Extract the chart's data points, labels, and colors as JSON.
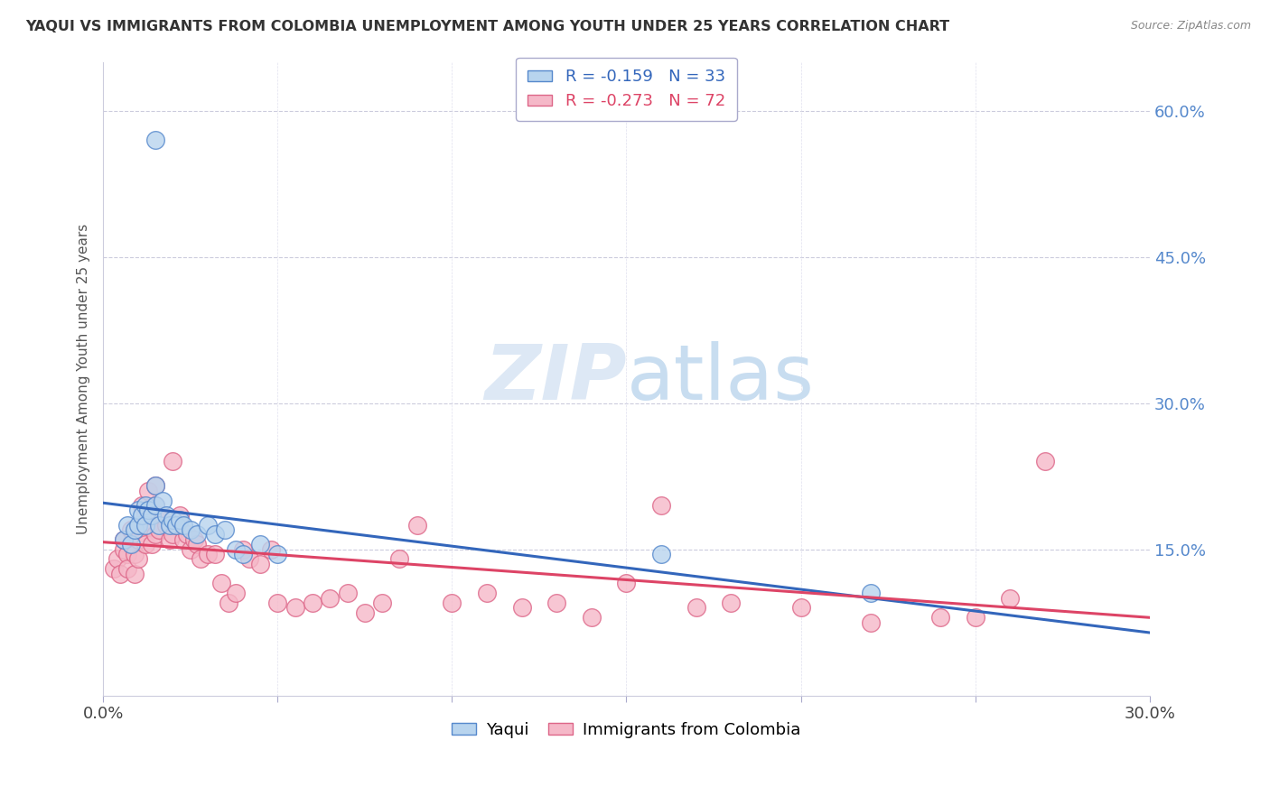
{
  "title": "YAQUI VS IMMIGRANTS FROM COLOMBIA UNEMPLOYMENT AMONG YOUTH UNDER 25 YEARS CORRELATION CHART",
  "source": "Source: ZipAtlas.com",
  "ylabel": "Unemployment Among Youth under 25 years",
  "yaqui_R": -0.159,
  "yaqui_N": 33,
  "colombia_R": -0.273,
  "colombia_N": 72,
  "xlim": [
    0.0,
    0.3
  ],
  "ylim": [
    0.0,
    0.65
  ],
  "xticks": [
    0.0,
    0.05,
    0.1,
    0.15,
    0.2,
    0.25,
    0.3
  ],
  "right_yticks": [
    0.0,
    0.15,
    0.3,
    0.45,
    0.6
  ],
  "right_yticklabels": [
    "",
    "15.0%",
    "30.0%",
    "45.0%",
    "60.0%"
  ],
  "yaqui_color": "#b8d4ee",
  "colombia_color": "#f5b8c8",
  "yaqui_edge": "#5588cc",
  "colombia_edge": "#dd6688",
  "trend_yaqui_color": "#3366bb",
  "trend_colombia_color": "#dd4466",
  "background_color": "#ffffff",
  "watermark_color": "#dde8f5",
  "yaqui_x": [
    0.006,
    0.007,
    0.008,
    0.009,
    0.01,
    0.01,
    0.011,
    0.012,
    0.012,
    0.013,
    0.014,
    0.015,
    0.015,
    0.016,
    0.017,
    0.018,
    0.019,
    0.02,
    0.021,
    0.022,
    0.023,
    0.025,
    0.027,
    0.03,
    0.032,
    0.035,
    0.038,
    0.04,
    0.045,
    0.05,
    0.16,
    0.22,
    0.015
  ],
  "yaqui_y": [
    0.16,
    0.175,
    0.155,
    0.17,
    0.175,
    0.19,
    0.185,
    0.195,
    0.175,
    0.19,
    0.185,
    0.195,
    0.215,
    0.175,
    0.2,
    0.185,
    0.175,
    0.18,
    0.175,
    0.18,
    0.175,
    0.17,
    0.165,
    0.175,
    0.165,
    0.17,
    0.15,
    0.145,
    0.155,
    0.145,
    0.145,
    0.105,
    0.57
  ],
  "colombia_x": [
    0.003,
    0.004,
    0.005,
    0.006,
    0.006,
    0.007,
    0.007,
    0.008,
    0.008,
    0.009,
    0.009,
    0.01,
    0.01,
    0.011,
    0.011,
    0.012,
    0.012,
    0.013,
    0.013,
    0.014,
    0.014,
    0.015,
    0.015,
    0.016,
    0.016,
    0.017,
    0.018,
    0.019,
    0.02,
    0.021,
    0.022,
    0.023,
    0.024,
    0.025,
    0.026,
    0.027,
    0.028,
    0.03,
    0.032,
    0.034,
    0.036,
    0.038,
    0.04,
    0.042,
    0.045,
    0.048,
    0.05,
    0.055,
    0.06,
    0.065,
    0.07,
    0.075,
    0.08,
    0.085,
    0.09,
    0.1,
    0.11,
    0.12,
    0.13,
    0.14,
    0.15,
    0.16,
    0.17,
    0.18,
    0.2,
    0.22,
    0.24,
    0.25,
    0.26,
    0.27,
    0.015,
    0.02
  ],
  "colombia_y": [
    0.13,
    0.14,
    0.125,
    0.15,
    0.16,
    0.145,
    0.13,
    0.155,
    0.17,
    0.125,
    0.145,
    0.16,
    0.14,
    0.175,
    0.195,
    0.185,
    0.155,
    0.175,
    0.21,
    0.155,
    0.185,
    0.165,
    0.195,
    0.185,
    0.17,
    0.185,
    0.175,
    0.16,
    0.165,
    0.175,
    0.185,
    0.16,
    0.165,
    0.15,
    0.16,
    0.155,
    0.14,
    0.145,
    0.145,
    0.115,
    0.095,
    0.105,
    0.15,
    0.14,
    0.135,
    0.15,
    0.095,
    0.09,
    0.095,
    0.1,
    0.105,
    0.085,
    0.095,
    0.14,
    0.175,
    0.095,
    0.105,
    0.09,
    0.095,
    0.08,
    0.115,
    0.195,
    0.09,
    0.095,
    0.09,
    0.075,
    0.08,
    0.08,
    0.1,
    0.24,
    0.215,
    0.24
  ]
}
